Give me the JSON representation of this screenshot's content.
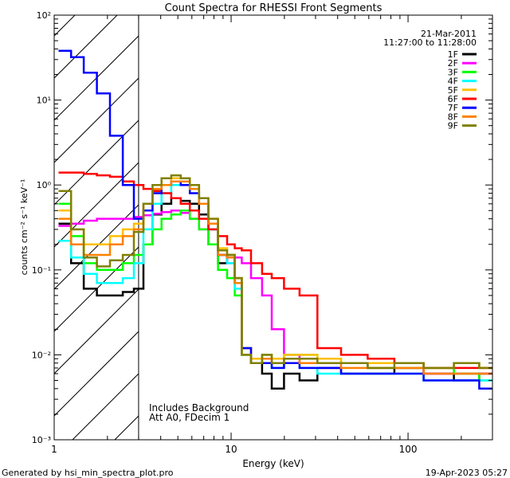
{
  "chart_data": {
    "type": "line",
    "title": "Count Spectra for RHESSI Front Segments",
    "xlabel": "Energy (keV)",
    "ylabel": "counts cm⁻² s⁻¹ keV⁻¹",
    "xscale": "log",
    "yscale": "log",
    "xlim": [
      1,
      300
    ],
    "ylim": [
      0.001,
      100
    ],
    "x_ticks": [
      "1",
      "10",
      "100"
    ],
    "y_ticks": [
      "10⁻³",
      "10⁻²",
      "10⁻¹",
      "10⁰",
      "10¹",
      "10²"
    ],
    "grid": false,
    "legend_position": "top-right",
    "date": "21-Mar-2011",
    "time_range": "11:27:00 to 11:28:00",
    "annotation": [
      "Includes Background",
      "Att A0, FDecim 1"
    ],
    "excluded_region_xmax": 3,
    "series": [
      {
        "name": "1F",
        "color": "#000000",
        "x": [
          1.15,
          1.35,
          1.6,
          1.9,
          2.25,
          2.65,
          3.0,
          3.4,
          3.8,
          4.3,
          4.9,
          5.5,
          6.2,
          7.0,
          7.9,
          9.0,
          10.0,
          11.0,
          12.0,
          14.0,
          16.0,
          18.0,
          22.0,
          27.0,
          35.0,
          50.0,
          70.0,
          100.0,
          150.0,
          220.0,
          290.0
        ],
        "y": [
          0.35,
          0.12,
          0.06,
          0.05,
          0.05,
          0.055,
          0.06,
          0.2,
          0.45,
          0.6,
          0.7,
          0.65,
          0.6,
          0.45,
          0.3,
          0.12,
          0.15,
          0.08,
          0.012,
          0.008,
          0.006,
          0.004,
          0.006,
          0.005,
          0.007,
          0.006,
          0.006,
          0.007,
          0.006,
          0.005,
          0.006
        ]
      },
      {
        "name": "2F",
        "color": "#ff00ff",
        "x": [
          1.15,
          1.35,
          1.6,
          1.9,
          2.25,
          2.65,
          3.0,
          3.4,
          3.8,
          4.3,
          4.9,
          5.5,
          6.2,
          7.0,
          7.9,
          9.0,
          10.0,
          11.0,
          12.0,
          14.0,
          16.0,
          18.0,
          22.0,
          27.0,
          35.0,
          50.0,
          70.0,
          100.0,
          150.0,
          220.0,
          290.0
        ],
        "y": [
          0.33,
          0.35,
          0.38,
          0.4,
          0.4,
          0.4,
          0.42,
          0.44,
          0.46,
          0.48,
          0.5,
          0.47,
          0.4,
          0.3,
          0.2,
          0.15,
          0.12,
          0.14,
          0.12,
          0.08,
          0.05,
          0.02,
          0.01,
          0.008,
          0.008,
          0.008,
          0.007,
          0.007,
          0.006,
          0.006,
          0.006
        ]
      },
      {
        "name": "3F",
        "color": "#00ff00",
        "x": [
          1.15,
          1.35,
          1.6,
          1.9,
          2.25,
          2.65,
          3.0,
          3.4,
          3.8,
          4.3,
          4.9,
          5.5,
          6.2,
          7.0,
          7.9,
          9.0,
          10.0,
          11.0,
          12.0,
          14.0,
          16.0,
          18.0,
          22.0,
          27.0,
          35.0,
          50.0,
          70.0,
          100.0,
          150.0,
          220.0,
          290.0
        ],
        "y": [
          0.6,
          0.25,
          0.12,
          0.1,
          0.1,
          0.12,
          0.15,
          0.2,
          0.3,
          0.4,
          0.45,
          0.5,
          0.4,
          0.3,
          0.2,
          0.1,
          0.08,
          0.05,
          0.01,
          0.008,
          0.01,
          0.009,
          0.01,
          0.01,
          0.009,
          0.008,
          0.007,
          0.007,
          0.007,
          0.006,
          0.005
        ]
      },
      {
        "name": "4F",
        "color": "#00ffff",
        "x": [
          1.15,
          1.35,
          1.6,
          1.9,
          2.25,
          2.65,
          3.0,
          3.4,
          3.8,
          4.3,
          4.9,
          5.5,
          6.2,
          7.0,
          7.9,
          9.0,
          10.0,
          11.0,
          12.0,
          14.0,
          16.0,
          18.0,
          22.0,
          27.0,
          35.0,
          50.0,
          70.0,
          100.0,
          150.0,
          220.0,
          290.0
        ],
        "y": [
          0.22,
          0.14,
          0.09,
          0.07,
          0.07,
          0.08,
          0.12,
          0.3,
          0.6,
          0.8,
          1.0,
          1.0,
          0.9,
          0.6,
          0.3,
          0.15,
          0.12,
          0.06,
          0.01,
          0.008,
          0.008,
          0.007,
          0.008,
          0.007,
          0.006,
          0.006,
          0.006,
          0.006,
          0.005,
          0.005,
          0.005
        ]
      },
      {
        "name": "5F",
        "color": "#ffbf00",
        "x": [
          1.15,
          1.35,
          1.6,
          1.9,
          2.25,
          2.65,
          3.0,
          3.4,
          3.8,
          4.3,
          4.9,
          5.5,
          6.2,
          7.0,
          7.9,
          9.0,
          10.0,
          11.0,
          12.0,
          14.0,
          16.0,
          18.0,
          22.0,
          27.0,
          35.0,
          50.0,
          70.0,
          100.0,
          150.0,
          220.0,
          290.0
        ],
        "y": [
          0.5,
          0.3,
          0.2,
          0.2,
          0.25,
          0.3,
          0.35,
          0.5,
          0.8,
          1.0,
          1.2,
          1.2,
          1.0,
          0.7,
          0.4,
          0.18,
          0.15,
          0.08,
          0.012,
          0.009,
          0.01,
          0.009,
          0.01,
          0.01,
          0.009,
          0.008,
          0.008,
          0.008,
          0.007,
          0.008,
          0.007
        ]
      },
      {
        "name": "6F",
        "color": "#ff0000",
        "x": [
          1.15,
          1.35,
          1.6,
          1.9,
          2.25,
          2.65,
          3.0,
          3.4,
          3.8,
          4.3,
          4.9,
          5.5,
          6.2,
          7.0,
          7.9,
          9.0,
          10.0,
          11.0,
          12.0,
          14.0,
          16.0,
          18.0,
          22.0,
          27.0,
          35.0,
          50.0,
          70.0,
          100.0,
          150.0,
          220.0,
          290.0
        ],
        "y": [
          1.4,
          1.4,
          1.35,
          1.3,
          1.25,
          1.1,
          1.0,
          0.9,
          0.85,
          0.8,
          0.7,
          0.6,
          0.5,
          0.4,
          0.3,
          0.25,
          0.2,
          0.18,
          0.17,
          0.12,
          0.09,
          0.08,
          0.06,
          0.05,
          0.012,
          0.01,
          0.009,
          0.008,
          0.007,
          0.007,
          0.007
        ]
      },
      {
        "name": "7F",
        "color": "#0000ff",
        "x": [
          1.15,
          1.35,
          1.6,
          1.9,
          2.25,
          2.65,
          3.0,
          3.4,
          3.8,
          4.3,
          4.9,
          5.5,
          6.2,
          7.0,
          7.9,
          9.0,
          10.0,
          11.0,
          12.0,
          14.0,
          16.0,
          18.0,
          22.0,
          27.0,
          35.0,
          50.0,
          70.0,
          100.0,
          150.0,
          220.0,
          290.0
        ],
        "y": [
          38,
          32,
          21,
          12,
          3.8,
          1.0,
          0.4,
          0.5,
          0.8,
          1.0,
          1.1,
          1.0,
          0.8,
          0.6,
          0.35,
          0.15,
          0.14,
          0.07,
          0.012,
          0.008,
          0.008,
          0.007,
          0.008,
          0.007,
          0.007,
          0.006,
          0.006,
          0.006,
          0.005,
          0.005,
          0.004
        ]
      },
      {
        "name": "8F",
        "color": "#ff8000",
        "x": [
          1.15,
          1.35,
          1.6,
          1.9,
          2.25,
          2.65,
          3.0,
          3.4,
          3.8,
          4.3,
          4.9,
          5.5,
          6.2,
          7.0,
          7.9,
          9.0,
          10.0,
          11.0,
          12.0,
          14.0,
          16.0,
          18.0,
          22.0,
          27.0,
          35.0,
          50.0,
          70.0,
          100.0,
          150.0,
          220.0,
          290.0
        ],
        "y": [
          0.4,
          0.2,
          0.15,
          0.15,
          0.2,
          0.25,
          0.3,
          0.6,
          0.9,
          1.0,
          1.1,
          1.1,
          0.9,
          0.6,
          0.35,
          0.15,
          0.14,
          0.07,
          0.01,
          0.008,
          0.009,
          0.008,
          0.009,
          0.008,
          0.008,
          0.007,
          0.007,
          0.007,
          0.006,
          0.006,
          0.006
        ]
      },
      {
        "name": "9F",
        "color": "#808000",
        "x": [
          1.15,
          1.35,
          1.6,
          1.9,
          2.25,
          2.65,
          3.0,
          3.4,
          3.8,
          4.3,
          4.9,
          5.5,
          6.2,
          7.0,
          7.9,
          9.0,
          10.0,
          11.0,
          12.0,
          14.0,
          16.0,
          18.0,
          22.0,
          27.0,
          35.0,
          50.0,
          70.0,
          100.0,
          150.0,
          220.0,
          290.0
        ],
        "y": [
          0.85,
          0.3,
          0.14,
          0.11,
          0.13,
          0.15,
          0.28,
          0.6,
          1.0,
          1.2,
          1.3,
          1.2,
          1.0,
          0.7,
          0.4,
          0.17,
          0.15,
          0.08,
          0.01,
          0.008,
          0.01,
          0.008,
          0.009,
          0.009,
          0.008,
          0.008,
          0.007,
          0.008,
          0.007,
          0.008,
          0.007
        ]
      }
    ]
  },
  "footer": {
    "generated_by": "Generated by hsi_min_spectra_plot.pro",
    "timestamp": "19-Apr-2023 05:27"
  }
}
